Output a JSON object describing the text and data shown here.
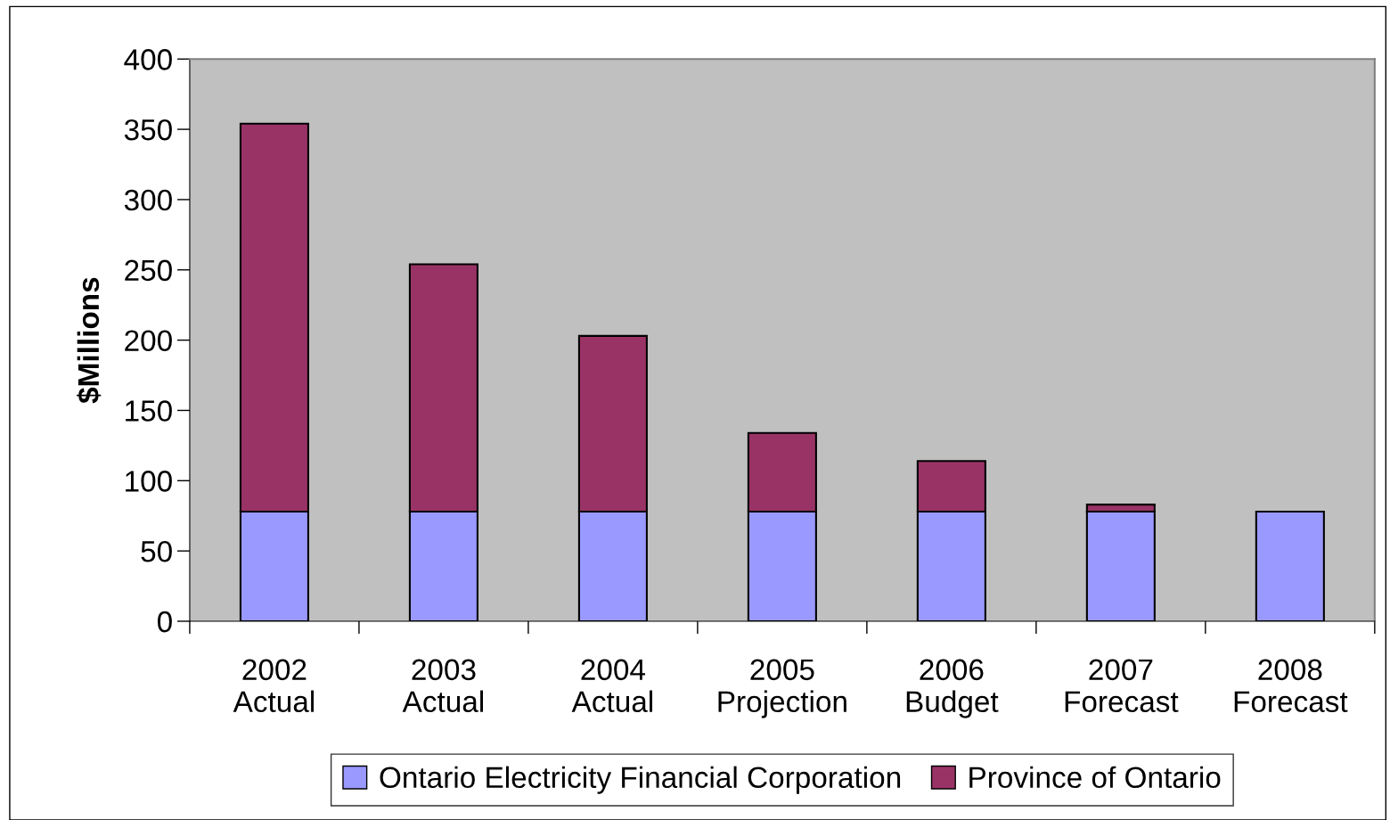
{
  "chart_data": {
    "type": "bar",
    "stacked": true,
    "ylabel": "$Millions",
    "categories": [
      "2002\nActual",
      "2003\nActual",
      "2004\nActual",
      "2005\nProjection",
      "2006\nBudget",
      "2007\nForecast",
      "2008\nForecast"
    ],
    "series": [
      {
        "name": "Ontario Electricity Financial Corporation",
        "color": "#9999ff",
        "values": [
          78,
          78,
          78,
          78,
          78,
          78,
          78
        ]
      },
      {
        "name": "Province of Ontario",
        "color": "#993366",
        "values": [
          276,
          176,
          125,
          56,
          36,
          5,
          null
        ]
      }
    ],
    "ylim": [
      0,
      400
    ],
    "yticks": [
      0,
      50,
      100,
      150,
      200,
      250,
      300,
      350,
      400
    ],
    "grid": false,
    "legend": "bottom"
  }
}
